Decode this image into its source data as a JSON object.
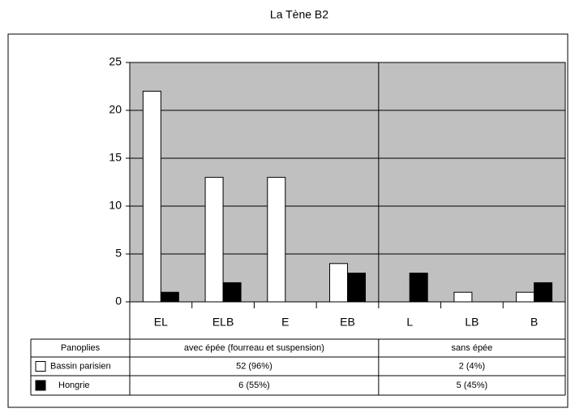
{
  "chart_data": {
    "type": "bar",
    "title": "La Tène B2",
    "categories": [
      "EL",
      "ELB",
      "E",
      "EB",
      "L",
      "LB",
      "B"
    ],
    "series": [
      {
        "name": "Bassin parisien",
        "color": "#ffffff",
        "values": [
          22,
          13,
          13,
          4,
          0,
          1,
          1
        ]
      },
      {
        "name": "Hongrie",
        "color": "#000000",
        "values": [
          1,
          2,
          0,
          3,
          3,
          0,
          2
        ]
      }
    ],
    "ylim": [
      0,
      25
    ],
    "yticks": [
      0,
      5,
      10,
      15,
      20,
      25
    ],
    "grid": true,
    "plot_color": "#c0c0c0",
    "table": {
      "header": [
        "Panoplies",
        "avec épée (fourreau et suspension)",
        "sans épée"
      ],
      "rows": [
        [
          "52 (96%)",
          "2 (4%)"
        ],
        [
          "6 (55%)",
          "5 (45%)"
        ]
      ]
    }
  }
}
